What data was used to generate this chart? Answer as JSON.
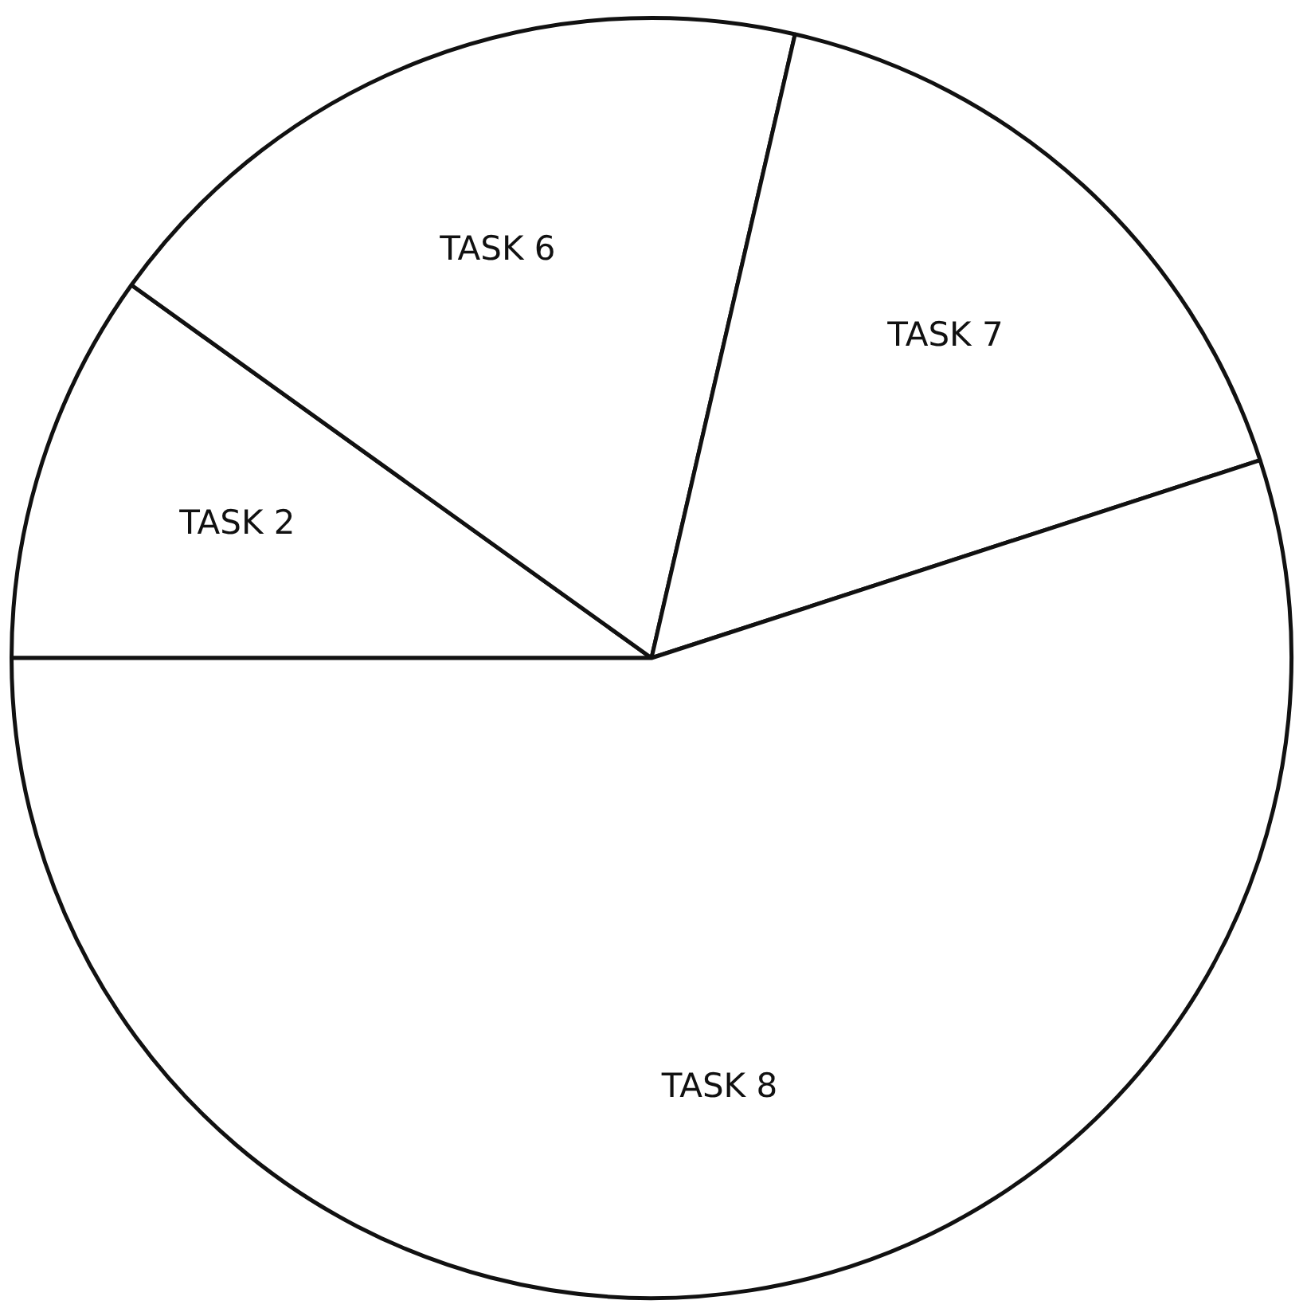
{
  "chart_data": {
    "type": "pie",
    "categories": [
      "TASK 2",
      "TASK 6",
      "TASK 7",
      "TASK 8"
    ],
    "values": [
      9.9,
      18.7,
      16.4,
      55.0
    ],
    "colors": [
      "#ffffff",
      "#ffffff",
      "#ffffff",
      "#ffffff"
    ],
    "legend": false
  }
}
